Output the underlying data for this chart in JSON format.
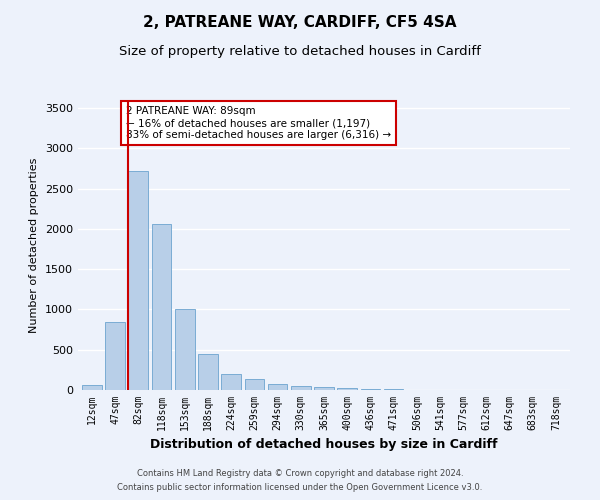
{
  "title": "2, PATREANE WAY, CARDIFF, CF5 4SA",
  "subtitle": "Size of property relative to detached houses in Cardiff",
  "xlabel": "Distribution of detached houses by size in Cardiff",
  "ylabel": "Number of detached properties",
  "categories": [
    "12sqm",
    "47sqm",
    "82sqm",
    "118sqm",
    "153sqm",
    "188sqm",
    "224sqm",
    "259sqm",
    "294sqm",
    "330sqm",
    "365sqm",
    "400sqm",
    "436sqm",
    "471sqm",
    "506sqm",
    "541sqm",
    "577sqm",
    "612sqm",
    "647sqm",
    "683sqm",
    "718sqm"
  ],
  "values": [
    60,
    840,
    2720,
    2060,
    1000,
    450,
    200,
    140,
    70,
    55,
    40,
    30,
    15,
    8,
    5,
    3,
    2,
    2,
    1,
    1,
    1
  ],
  "bar_color": "#b8cfe8",
  "bar_edge_color": "#7aacd4",
  "vline_color": "#cc0000",
  "vline_x_index": 2,
  "ylim": [
    0,
    3600
  ],
  "yticks": [
    0,
    500,
    1000,
    1500,
    2000,
    2500,
    3000,
    3500
  ],
  "annotation_text": "2 PATREANE WAY: 89sqm\n← 16% of detached houses are smaller (1,197)\n83% of semi-detached houses are larger (6,316) →",
  "annotation_box_color": "#ffffff",
  "annotation_box_edge": "#cc0000",
  "footer1": "Contains HM Land Registry data © Crown copyright and database right 2024.",
  "footer2": "Contains public sector information licensed under the Open Government Licence v3.0.",
  "bg_color": "#edf2fb",
  "grid_color": "#ffffff",
  "title_fontsize": 11,
  "subtitle_fontsize": 9.5,
  "xlabel_fontsize": 9,
  "ylabel_fontsize": 8
}
